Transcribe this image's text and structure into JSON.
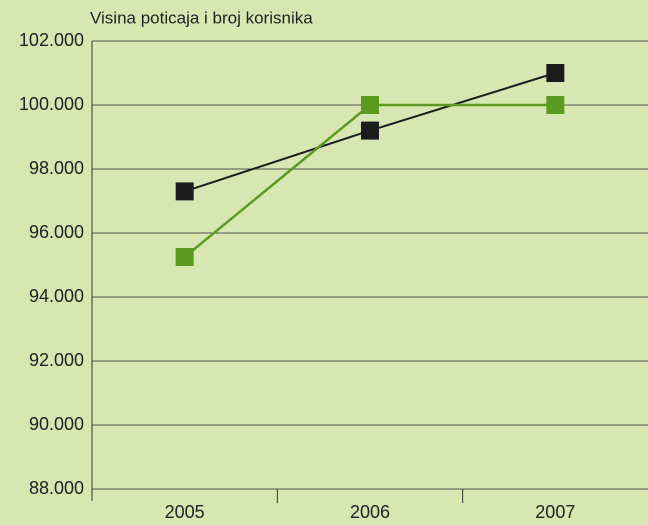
{
  "chart_data": {
    "type": "line",
    "title": "Visina poticaja i broj korisnika",
    "categories": [
      "2005",
      "2006",
      "2007"
    ],
    "series": [
      {
        "color": "#1c1c1c",
        "values": [
          97300,
          99200,
          101000
        ]
      },
      {
        "color": "#5a9a1e",
        "values": [
          95250,
          100000,
          100000
        ]
      }
    ],
    "ylim": [
      88000,
      102000
    ],
    "yticks": [
      {
        "value": 88000,
        "label": "88.000"
      },
      {
        "value": 90000,
        "label": "90.000"
      },
      {
        "value": 92000,
        "label": "92.000"
      },
      {
        "value": 94000,
        "label": "94.000"
      },
      {
        "value": 96000,
        "label": "96.000"
      },
      {
        "value": 98000,
        "label": "98.000"
      },
      {
        "value": 100000,
        "label": "100.000"
      },
      {
        "value": 102000,
        "label": "102.000"
      }
    ],
    "grid": true
  }
}
